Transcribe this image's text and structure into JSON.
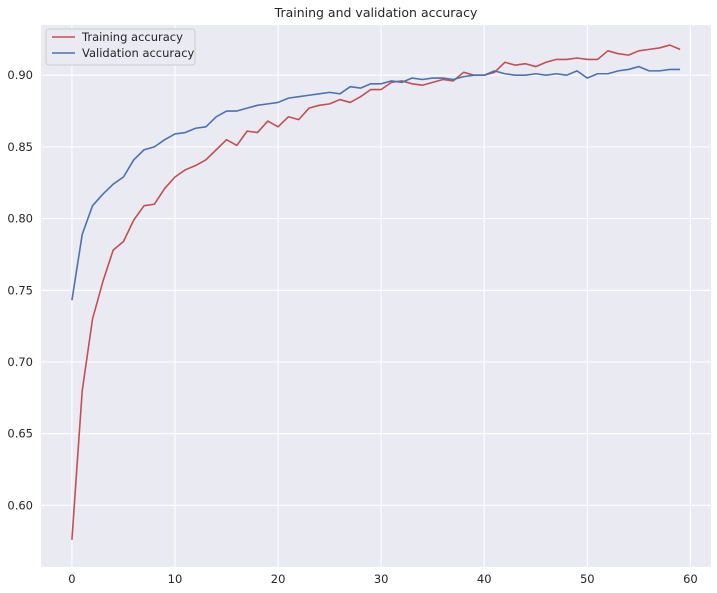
{
  "chart_data": {
    "type": "line",
    "title": "Training and validation accuracy",
    "xlabel": "",
    "ylabel": "",
    "xlim": [
      -3,
      62
    ],
    "ylim": [
      0.557,
      0.935
    ],
    "xticks": [
      0,
      10,
      20,
      30,
      40,
      50,
      60
    ],
    "xtick_labels": [
      "0",
      "10",
      "20",
      "30",
      "40",
      "50",
      "60"
    ],
    "yticks": [
      0.6,
      0.65,
      0.7,
      0.75,
      0.8,
      0.85,
      0.9
    ],
    "ytick_labels": [
      "0.60",
      "0.65",
      "0.70",
      "0.75",
      "0.80",
      "0.85",
      "0.90"
    ],
    "grid": true,
    "legend_position": "top-left",
    "background_color": "#eaeaf2",
    "grid_color": "#ffffff",
    "x": [
      0,
      1,
      2,
      3,
      4,
      5,
      6,
      7,
      8,
      9,
      10,
      11,
      12,
      13,
      14,
      15,
      16,
      17,
      18,
      19,
      20,
      21,
      22,
      23,
      24,
      25,
      26,
      27,
      28,
      29,
      30,
      31,
      32,
      33,
      34,
      35,
      36,
      37,
      38,
      39,
      40,
      41,
      42,
      43,
      44,
      45,
      46,
      47,
      48,
      49,
      50,
      51,
      52,
      53,
      54,
      55,
      56,
      57,
      58,
      59
    ],
    "series": [
      {
        "name": "Training accuracy",
        "color": "#c44e52",
        "values": [
          0.576,
          0.68,
          0.73,
          0.756,
          0.778,
          0.784,
          0.799,
          0.809,
          0.81,
          0.821,
          0.829,
          0.834,
          0.837,
          0.841,
          0.848,
          0.855,
          0.851,
          0.861,
          0.86,
          0.868,
          0.864,
          0.871,
          0.869,
          0.877,
          0.879,
          0.88,
          0.883,
          0.881,
          0.885,
          0.89,
          0.89,
          0.895,
          0.896,
          0.894,
          0.893,
          0.895,
          0.897,
          0.896,
          0.902,
          0.9,
          0.9,
          0.902,
          0.909,
          0.907,
          0.908,
          0.906,
          0.909,
          0.911,
          0.911,
          0.912,
          0.911,
          0.911,
          0.917,
          0.915,
          0.914,
          0.917,
          0.918,
          0.919,
          0.921,
          0.918
        ]
      },
      {
        "name": "Validation accuracy",
        "color": "#4c72b0",
        "values": [
          0.743,
          0.789,
          0.809,
          0.817,
          0.824,
          0.829,
          0.841,
          0.848,
          0.85,
          0.855,
          0.859,
          0.86,
          0.863,
          0.864,
          0.871,
          0.875,
          0.875,
          0.877,
          0.879,
          0.88,
          0.881,
          0.884,
          0.885,
          0.886,
          0.887,
          0.888,
          0.887,
          0.892,
          0.891,
          0.894,
          0.894,
          0.896,
          0.895,
          0.898,
          0.897,
          0.898,
          0.898,
          0.897,
          0.899,
          0.9,
          0.9,
          0.903,
          0.901,
          0.9,
          0.9,
          0.901,
          0.9,
          0.901,
          0.9,
          0.903,
          0.898,
          0.901,
          0.901,
          0.903,
          0.904,
          0.906,
          0.903,
          0.903,
          0.904,
          0.904
        ]
      }
    ]
  }
}
